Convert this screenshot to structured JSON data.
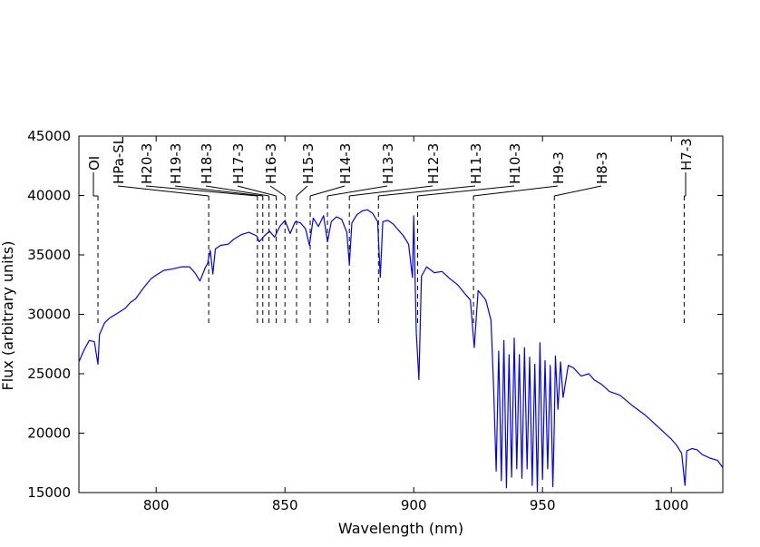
{
  "chart_data": {
    "type": "line",
    "xlabel": "Wavelength (nm)",
    "ylabel": "Flux (arbitrary units)",
    "xlim": [
      770,
      1020
    ],
    "ylim": [
      15000,
      45000
    ],
    "x_ticks": [
      800,
      850,
      900,
      950,
      1000
    ],
    "x_tick_labels": [
      "800",
      "850",
      "900",
      "950",
      "1000"
    ],
    "y_ticks": [
      15000,
      20000,
      25000,
      30000,
      35000,
      40000,
      45000
    ],
    "y_tick_labels": [
      "15000",
      "20000",
      "25000",
      "30000",
      "35000",
      "40000",
      "45000"
    ],
    "grid": false,
    "line_color": "#0000ff",
    "series": [
      {
        "name": "",
        "x": [
          770,
          772,
          774,
          776,
          777.4,
          778,
          780,
          782,
          785,
          788,
          790,
          792,
          795,
          798,
          800,
          803,
          806,
          810,
          813,
          815,
          817,
          819,
          820,
          821,
          822,
          823,
          825,
          828,
          830,
          833,
          836,
          839,
          840,
          842,
          844,
          846,
          848,
          850,
          852,
          854,
          856,
          858,
          859.5,
          861,
          863,
          865,
          866.5,
          868,
          870,
          872,
          874,
          875,
          876,
          878,
          880,
          882,
          884,
          886,
          887,
          888,
          890,
          892,
          894,
          896,
          898,
          899.5,
          900,
          901,
          902,
          903,
          905,
          908,
          911,
          914,
          917,
          920,
          922,
          923.5,
          925,
          928,
          930,
          931,
          932,
          933,
          934,
          935,
          936,
          937,
          938,
          939,
          940,
          941,
          942,
          943,
          944,
          945,
          946,
          947,
          948,
          949,
          950,
          951,
          952,
          953,
          954,
          954.6,
          955,
          956,
          957,
          958,
          960,
          962,
          965,
          968,
          970,
          973,
          976,
          980,
          985,
          990,
          995,
          1000,
          1002,
          1004,
          1005.3,
          1006,
          1008,
          1010,
          1012,
          1015,
          1018,
          1020
        ],
        "y": [
          26000,
          27000,
          27800,
          27700,
          25800,
          28300,
          29300,
          29700,
          30100,
          30500,
          31000,
          31300,
          32200,
          33000,
          33300,
          33700,
          33800,
          34000,
          34000,
          33500,
          32800,
          33900,
          34300,
          35400,
          33400,
          35500,
          35800,
          35900,
          36300,
          36700,
          36900,
          36600,
          36100,
          36600,
          37000,
          36500,
          37400,
          37900,
          36800,
          37800,
          37700,
          37200,
          35800,
          38100,
          37400,
          38300,
          36100,
          37800,
          38200,
          38000,
          36900,
          34200,
          37700,
          38400,
          38700,
          38800,
          38500,
          37800,
          33100,
          37800,
          37900,
          37600,
          37100,
          36600,
          35900,
          33100,
          38300,
          28500,
          24500,
          33200,
          34000,
          33500,
          33600,
          33000,
          32500,
          31700,
          31200,
          27200,
          32000,
          31200,
          29500,
          24000,
          16800,
          26900,
          16000,
          27800,
          15400,
          26600,
          16300,
          28000,
          17000,
          26600,
          16200,
          27200,
          17000,
          26400,
          15600,
          25800,
          15100,
          27600,
          16100,
          26100,
          17000,
          25700,
          15500,
          21000,
          26500,
          22000,
          26000,
          23000,
          25700,
          25500,
          24800,
          25000,
          24500,
          24100,
          23500,
          23200,
          22300,
          21500,
          20500,
          19500,
          19000,
          18300,
          15600,
          18500,
          18700,
          18600,
          18200,
          17900,
          17700,
          17100
        ]
      }
    ],
    "annotations": [
      {
        "label": "OI",
        "x": 777.4
      },
      {
        "label": "HPa-SL",
        "x": 820.4
      },
      {
        "label": "H20-3",
        "x": 839.3
      },
      {
        "label": "H19-3",
        "x": 841.4
      },
      {
        "label": "H18-3",
        "x": 843.8
      },
      {
        "label": "H17-3",
        "x": 846.6
      },
      {
        "label": "H16-3",
        "x": 850.0
      },
      {
        "label": "H15-3",
        "x": 854.5
      },
      {
        "label": "H14-3",
        "x": 859.8
      },
      {
        "label": "H13-3",
        "x": 866.5
      },
      {
        "label": "H12-3",
        "x": 875.0
      },
      {
        "label": "H11-3",
        "x": 886.3
      },
      {
        "label": "H10-3",
        "x": 901.5
      },
      {
        "label": "H9-3",
        "x": 923.2
      },
      {
        "label": "H8-3",
        "x": 954.6
      },
      {
        "label": "H7-3",
        "x": 1005.0
      }
    ]
  }
}
